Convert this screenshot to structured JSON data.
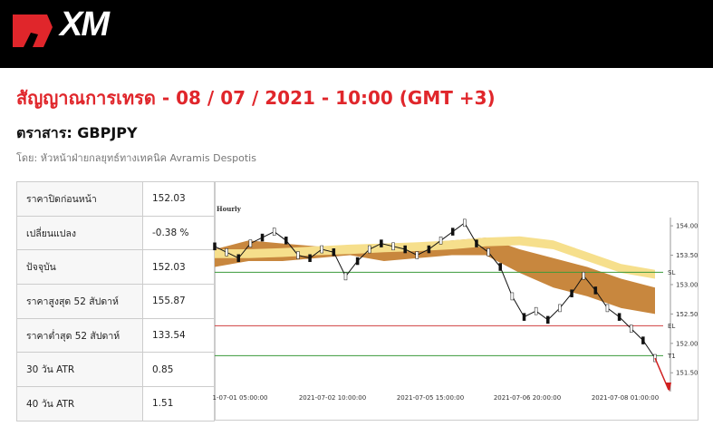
{
  "header": {
    "logo": "XM"
  },
  "title": "สัญญาณการเทรด - 08 / 07 / 2021 - 10:00 (GMT +3)",
  "instrument": "ตราสาร: GBPJPY",
  "author": "โดย: หัวหน้าฝ่ายกลยุทธ์ทางเทคนิค Avramis Despotis",
  "table": {
    "rows": [
      [
        "ราคาปิดก่อนหน้า",
        "152.03"
      ],
      [
        "เปลี่ยนแปลง",
        "-0.38 %"
      ],
      [
        "ปัจจุบัน",
        "152.03"
      ],
      [
        "ราคาสูงสุด 52 สัปดาห์",
        "155.87"
      ],
      [
        "ราคาต่ำสุด 52 สัปดาห์",
        "133.54"
      ],
      [
        "30 วัน ATR",
        "0.85"
      ],
      [
        "40 วัน ATR",
        "1.51"
      ]
    ]
  },
  "chart": {
    "label": "Hourly",
    "ylim": [
      151.18,
      154.68
    ],
    "yticks": [
      {
        "value": 151.5,
        "label": "151.50"
      },
      {
        "value": 152,
        "label": "152.00"
      },
      {
        "value": 152.5,
        "label": "152.50"
      },
      {
        "value": 153,
        "label": "153.00"
      },
      {
        "value": 153.5,
        "label": "153.50"
      },
      {
        "value": 154,
        "label": "154.00"
      }
    ],
    "xlabels": [
      "1-07-01 05:00:00",
      "2021-07-02 10:00:00",
      "2021-07-05 15:00:00",
      "2021-07-06 20:00:00",
      "2021-07-08 01:00:00"
    ],
    "levels": [
      {
        "label": "SL",
        "value": 153.21,
        "color": "#3a9a3a"
      },
      {
        "label": "EL",
        "value": 152.3,
        "color": "#d04040"
      },
      {
        "label": "T1",
        "value": 151.79,
        "color": "#3a9a3a"
      }
    ],
    "close": [
      153.65,
      153.55,
      153.45,
      153.7,
      153.8,
      153.9,
      153.75,
      153.5,
      153.45,
      153.6,
      153.55,
      153.14,
      153.4,
      153.6,
      153.7,
      153.65,
      153.6,
      153.5,
      153.6,
      153.75,
      153.9,
      154.05,
      153.7,
      153.55,
      153.3,
      152.8,
      152.45,
      152.55,
      152.4,
      152.6,
      152.85,
      153.15,
      152.9,
      152.6,
      152.45,
      152.25,
      152.05,
      151.75
    ],
    "slow_top": [
      153.6,
      153.6,
      153.62,
      153.65,
      153.68,
      153.7,
      153.72,
      153.75,
      153.8,
      153.82,
      153.75,
      153.55,
      153.35,
      153.25
    ],
    "slow_bottom": [
      153.45,
      153.45,
      153.47,
      153.5,
      153.52,
      153.55,
      153.57,
      153.6,
      153.65,
      153.67,
      153.6,
      153.4,
      153.2,
      153.1
    ],
    "fast_top": [
      153.6,
      153.75,
      153.7,
      153.65,
      153.6,
      153.65,
      153.7,
      153.75,
      153.8,
      153.6,
      153.45,
      153.3,
      153.1,
      152.95
    ],
    "fast_bottom": [
      153.3,
      153.4,
      153.4,
      153.45,
      153.5,
      153.4,
      153.45,
      153.5,
      153.5,
      153.2,
      152.95,
      152.8,
      152.6,
      152.5
    ]
  }
}
